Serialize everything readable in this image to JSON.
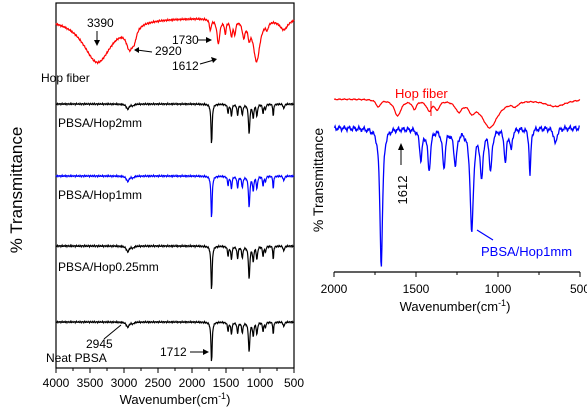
{
  "chart_data": [
    {
      "type": "line",
      "xlabel": "Wavenumber(cm",
      "xlabel_sup": "-1",
      "xlabel_close": ")",
      "ylabel": "% Transmittance",
      "xlim": [
        4000,
        500
      ],
      "x_reversed": true,
      "x_ticks": [
        "4000",
        "3500",
        "3000",
        "2500",
        "2000",
        "1500",
        "1000",
        "500"
      ],
      "grid": false,
      "series": [
        {
          "name": "Hop fiber",
          "color": "#ff0000"
        },
        {
          "name": "PBSA/Hop2mm",
          "color": "#000000"
        },
        {
          "name": "PBSA/Hop1mm",
          "color": "#0000ff"
        },
        {
          "name": "PBSA/Hop0.25mm",
          "color": "#000000"
        },
        {
          "name": "Neat PBSA",
          "color": "#000000"
        }
      ],
      "annotations": [
        "3390",
        "2920",
        "1730",
        "1612",
        "2945",
        "1712"
      ]
    },
    {
      "type": "line",
      "xlabel": "Wavenumber(cm",
      "xlabel_sup": "-1",
      "xlabel_close": ")",
      "ylabel": "% Transmittance",
      "xlim": [
        2000,
        500
      ],
      "x_reversed": true,
      "x_ticks": [
        "2000",
        "1500",
        "1000",
        "500"
      ],
      "grid": false,
      "series": [
        {
          "name": "Hop fiber",
          "color": "#ff0000"
        },
        {
          "name": "PBSA/Hop1mm",
          "color": "#0000ff"
        }
      ],
      "annotations": [
        "1612"
      ]
    }
  ]
}
